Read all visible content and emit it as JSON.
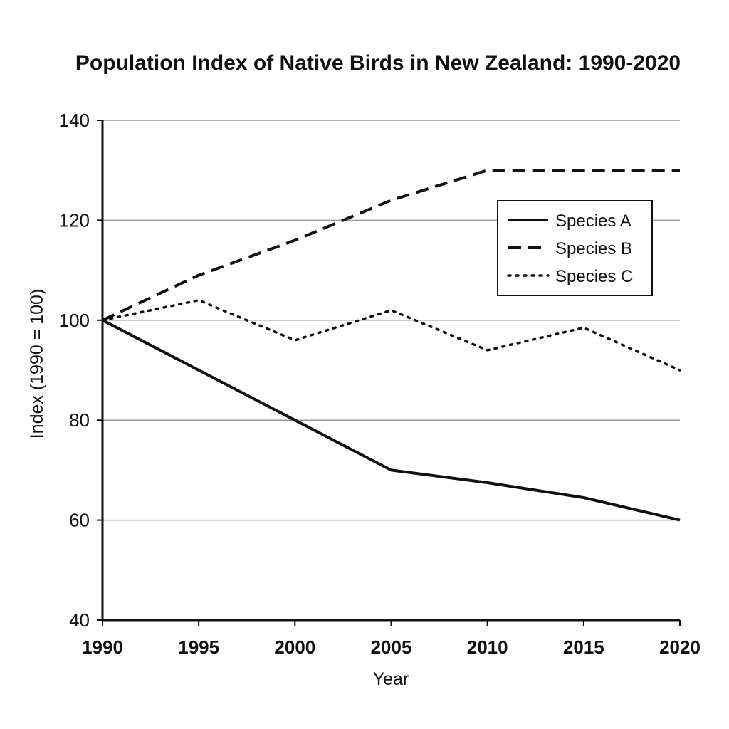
{
  "chart_data": {
    "type": "line",
    "title": "Population Index of Native Birds in New Zealand: 1990-2020",
    "xlabel": "Year",
    "ylabel": "Index (1990 = 100)",
    "x": [
      1990,
      1995,
      2000,
      2005,
      2010,
      2015,
      2020
    ],
    "x_tick_labels": [
      "1990",
      "1995",
      "2000",
      "2005",
      "2010",
      "2015",
      "2020"
    ],
    "xlim": [
      1990,
      2020
    ],
    "ylim": [
      40,
      140
    ],
    "y_ticks": [
      40,
      60,
      80,
      100,
      120,
      140
    ],
    "y_tick_labels": [
      "40",
      "60",
      "80",
      "100",
      "120",
      "140"
    ],
    "grid": "horizontal",
    "legend_position": "top-right",
    "series": [
      {
        "name": "Species A",
        "style": "solid",
        "color": "#111111",
        "values": [
          100,
          90,
          80,
          70,
          67.5,
          64.5,
          60
        ]
      },
      {
        "name": "Species B",
        "style": "dashed",
        "color": "#111111",
        "values": [
          100,
          109,
          116,
          124,
          130,
          130,
          130
        ]
      },
      {
        "name": "Species C",
        "style": "dotted",
        "color": "#111111",
        "values": [
          100,
          104,
          96,
          102,
          94,
          98.5,
          90
        ]
      }
    ]
  }
}
